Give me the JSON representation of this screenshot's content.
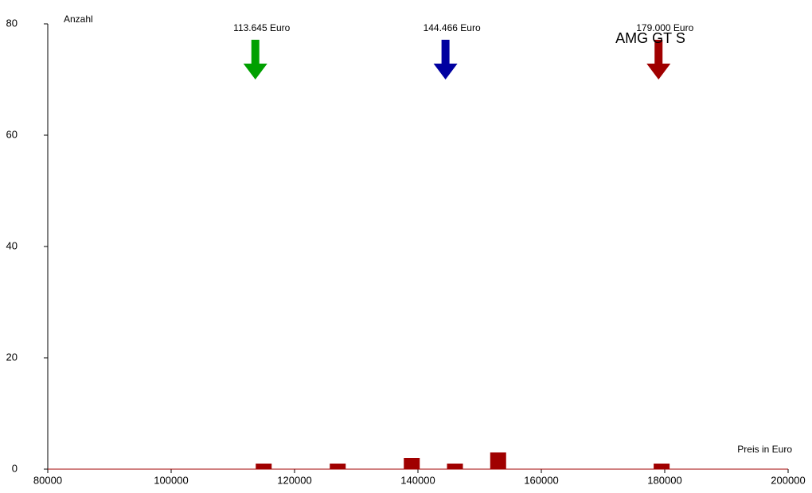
{
  "chart_data": {
    "type": "bar",
    "annotation": "AMG GT S",
    "y_label": "Anzahl",
    "x_label": "Preis in Euro",
    "x": [
      115000,
      127000,
      139000,
      146000,
      153000,
      179500
    ],
    "values": [
      1,
      1,
      2,
      1,
      3,
      1
    ],
    "color": "#a00000",
    "xlim": [
      80000,
      200000
    ],
    "xticks": [
      80000,
      100000,
      120000,
      140000,
      160000,
      180000,
      200000
    ],
    "ylim": [
      0,
      80
    ],
    "yticks": [
      0,
      20,
      40,
      60,
      80
    ],
    "markers": [
      {
        "value": 113645,
        "label": "113.645 Euro",
        "color": "#00a000"
      },
      {
        "value": 144466,
        "label": "144.466 Euro",
        "color": "#0000a0"
      },
      {
        "value": 179000,
        "label": "179.000 Euro",
        "color": "#a00000"
      }
    ]
  }
}
